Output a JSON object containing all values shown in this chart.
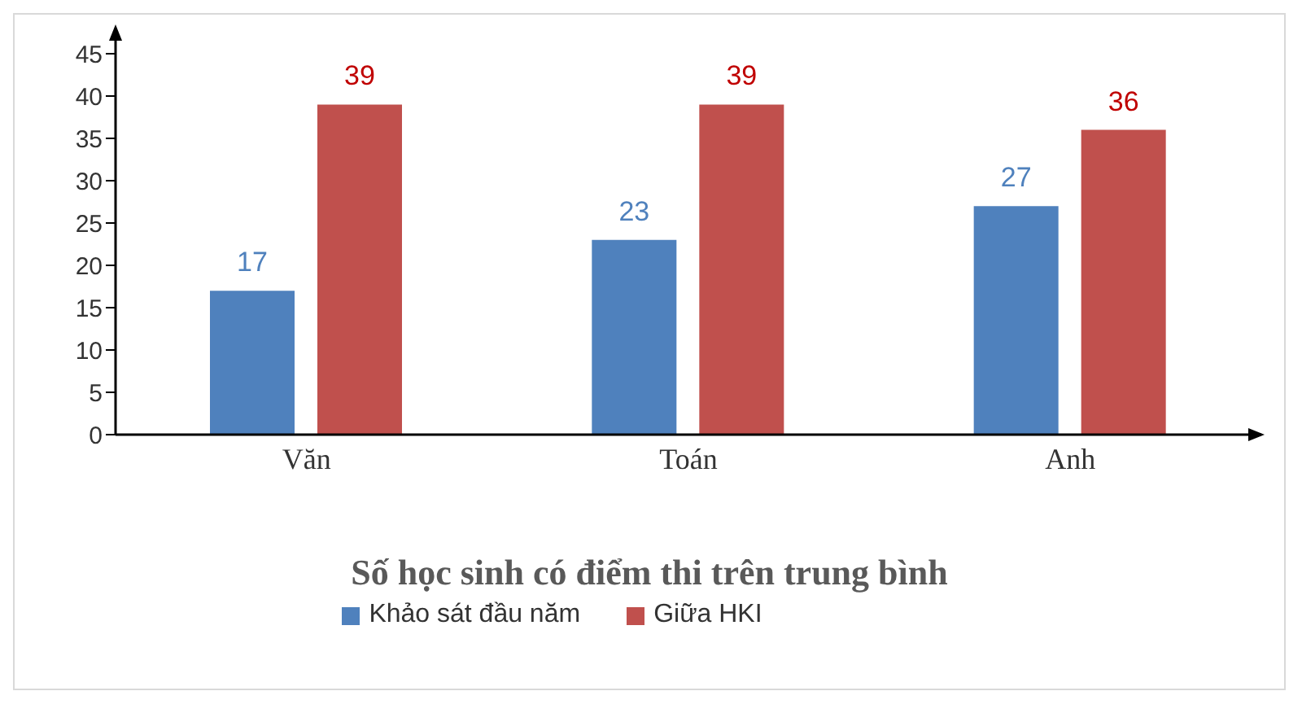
{
  "chart_data": {
    "type": "bar",
    "title": "Số học sinh có điểm thi trên trung bình",
    "categories": [
      "Văn",
      "Toán",
      "Anh"
    ],
    "series": [
      {
        "name": "Khảo sát đầu năm",
        "color": "#4f81bd",
        "values": [
          17,
          23,
          27
        ]
      },
      {
        "name": "Giữa HKI",
        "color": "#c0504d",
        "values": [
          39,
          39,
          36
        ]
      }
    ],
    "ylim": [
      0,
      45
    ],
    "yticks": [
      0,
      5,
      10,
      15,
      20,
      25,
      30,
      35,
      40,
      45
    ],
    "legend": "bottom",
    "data_labels": true
  }
}
